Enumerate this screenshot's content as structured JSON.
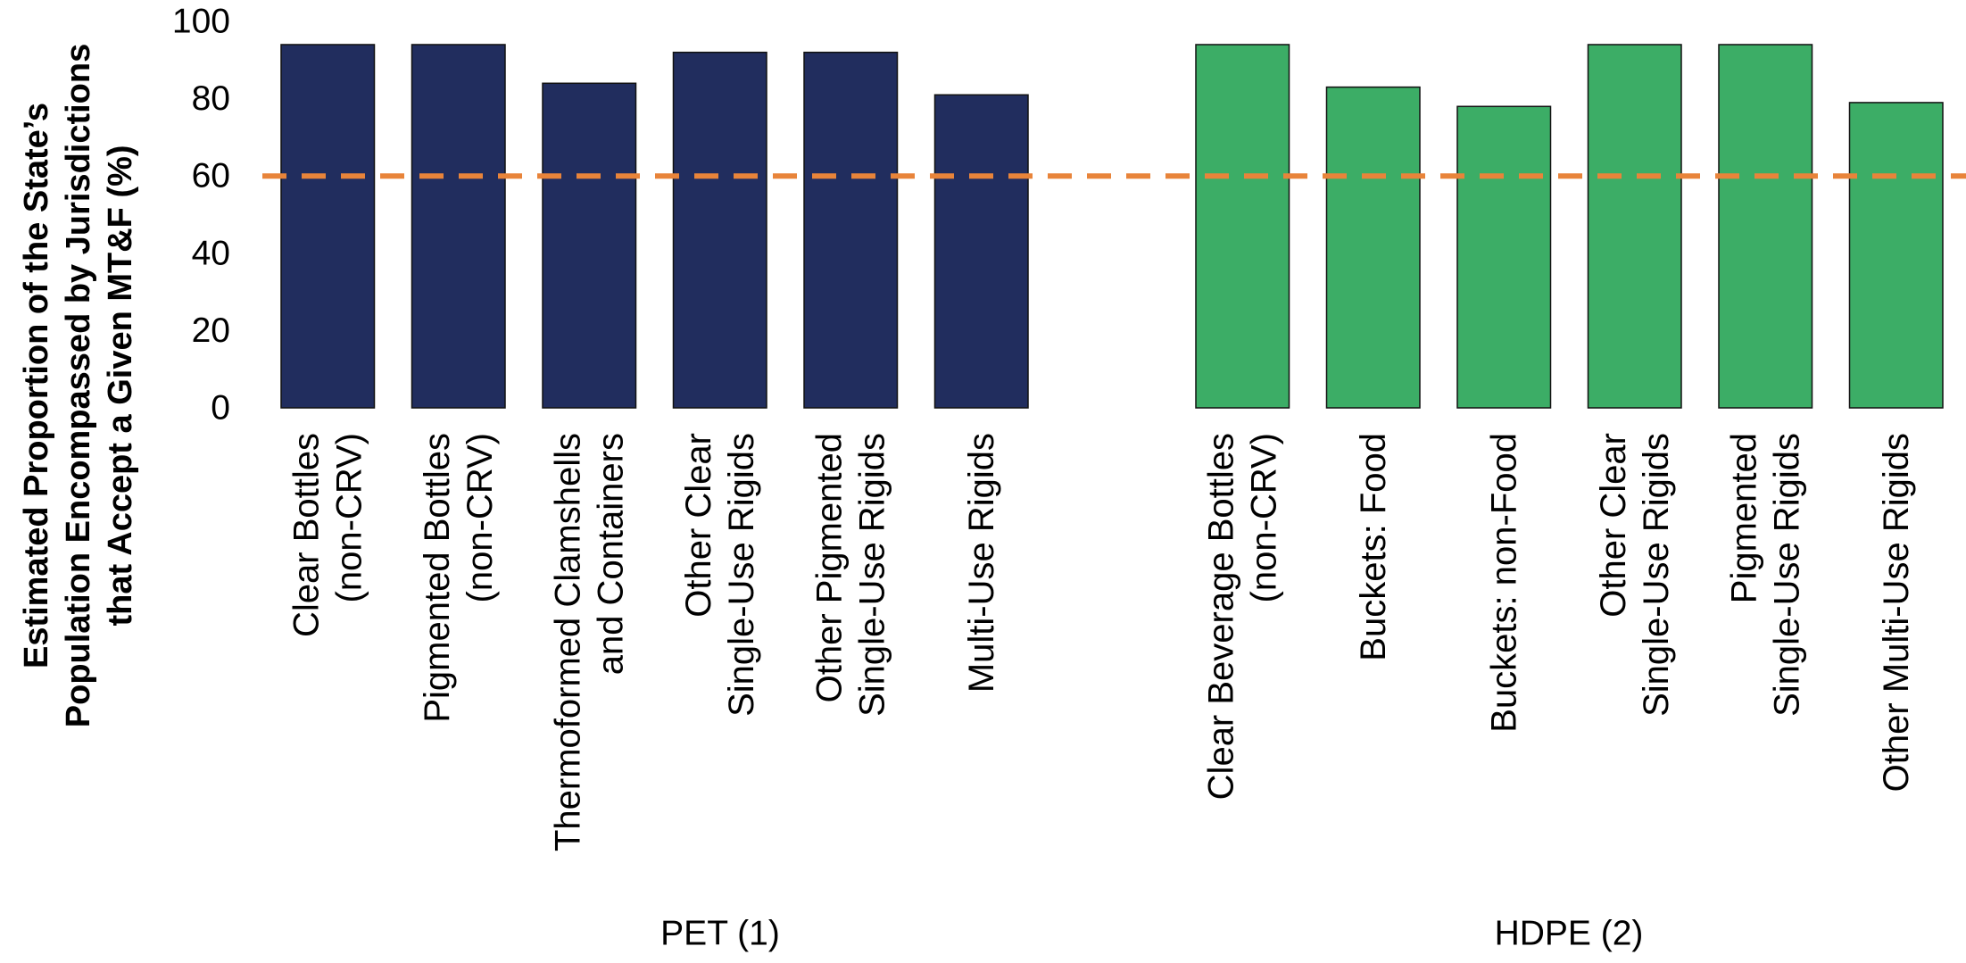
{
  "chart_data": {
    "type": "bar",
    "title": "",
    "ylabel": [
      "Estimated Proportion of the State’s",
      "Population Encompassed by Jurisdictions",
      "that Accept a Given MT&F (%)"
    ],
    "ylim": [
      0,
      100
    ],
    "yticks": [
      0,
      20,
      40,
      60,
      80,
      100
    ],
    "grid": false,
    "reference_line": {
      "value": 60,
      "color": "#E8843A",
      "style": "dashed"
    },
    "groups": [
      {
        "name": "PET (1)",
        "color": "#212D5E",
        "categories": [
          [
            "Clear Bottles",
            "(non-CRV)"
          ],
          [
            "Pigmented Bottles",
            "(non-CRV)"
          ],
          [
            "Thermoformed Clamshells",
            "and Containers"
          ],
          [
            "Other Clear",
            "Single-Use Rigids"
          ],
          [
            "Other Pigmented",
            "Single-Use Rigids"
          ],
          [
            "Multi-Use Rigids"
          ]
        ],
        "values": [
          94,
          94,
          84,
          92,
          92,
          81
        ]
      },
      {
        "name": "HDPE (2)",
        "color": "#3CAD66",
        "categories": [
          [
            "Clear Beverage Bottles",
            "(non-CRV)"
          ],
          [
            "Buckets: Food"
          ],
          [
            "Buckets: non-Food"
          ],
          [
            "Other Clear",
            "Single-Use Rigids"
          ],
          [
            "Pigmented",
            "Single-Use Rigids"
          ],
          [
            "Other Multi-Use Rigids"
          ]
        ],
        "values": [
          94,
          83,
          78,
          94,
          94,
          79
        ]
      }
    ]
  }
}
